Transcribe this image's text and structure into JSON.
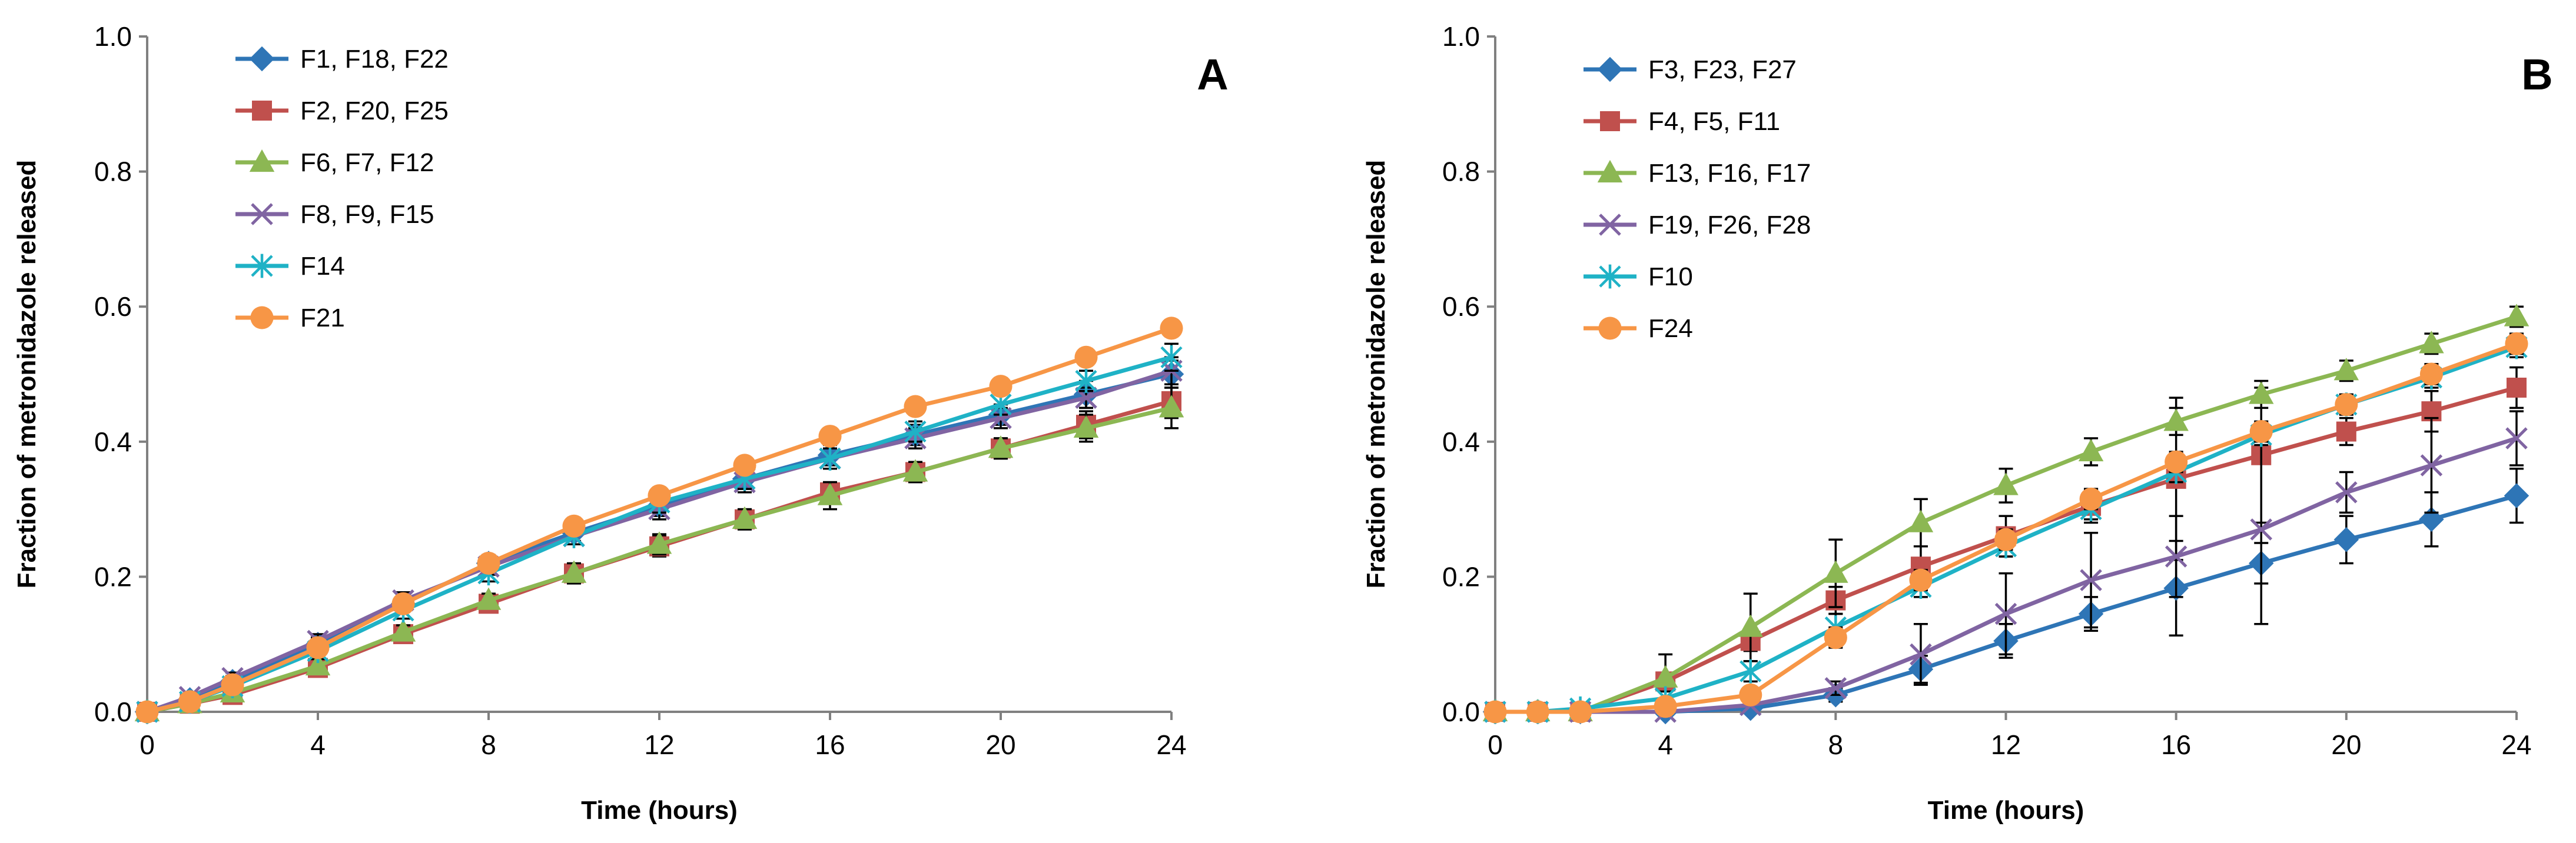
{
  "chart_data": [
    {
      "type": "line",
      "panel_label": "A",
      "xlabel": "Time (hours)",
      "ylabel": "Fraction of metronidazole released",
      "xlim": [
        0,
        24
      ],
      "ylim": [
        0,
        1.0
      ],
      "xticks": [
        "0",
        "4",
        "8",
        "12",
        "16",
        "20",
        "24"
      ],
      "yticks": [
        "0.0",
        "0.2",
        "0.4",
        "0.6",
        "0.8",
        "1.0"
      ],
      "legend_position": "top-left",
      "x": [
        0,
        1,
        2,
        4,
        6,
        8,
        10,
        12,
        14,
        16,
        18,
        20,
        22,
        24
      ],
      "series": [
        {
          "name": "F1, F18, F22",
          "color": "#2e75b6",
          "marker": "diamond",
          "values": [
            0,
            0.018,
            0.045,
            0.1,
            0.16,
            0.22,
            0.265,
            0.305,
            0.345,
            0.38,
            0.41,
            0.44,
            0.47,
            0.5
          ],
          "errors": [
            0,
            0.005,
            0.008,
            0.01,
            0.012,
            0.012,
            0.012,
            0.015,
            0.015,
            0.015,
            0.015,
            0.015,
            0.02,
            0.02
          ]
        },
        {
          "name": "F2, F20, F25",
          "color": "#c0504d",
          "marker": "square",
          "values": [
            0,
            0.012,
            0.025,
            0.065,
            0.115,
            0.16,
            0.205,
            0.245,
            0.285,
            0.325,
            0.355,
            0.39,
            0.425,
            0.46
          ],
          "errors": [
            0,
            0.004,
            0.006,
            0.01,
            0.01,
            0.01,
            0.012,
            0.015,
            0.015,
            0.015,
            0.015,
            0.015,
            0.02,
            0.025
          ]
        },
        {
          "name": "F6, F7, F12",
          "color": "#8cb753",
          "marker": "triangle",
          "values": [
            0,
            0.012,
            0.028,
            0.068,
            0.118,
            0.165,
            0.205,
            0.248,
            0.285,
            0.32,
            0.355,
            0.39,
            0.42,
            0.45
          ],
          "errors": [
            0,
            0.004,
            0.006,
            0.01,
            0.01,
            0.01,
            0.015,
            0.015,
            0.015,
            0.02,
            0.015,
            0.015,
            0.02,
            0.03
          ]
        },
        {
          "name": "F8, F9, F15",
          "color": "#8064a2",
          "marker": "x",
          "values": [
            0,
            0.022,
            0.05,
            0.105,
            0.165,
            0.215,
            0.26,
            0.3,
            0.34,
            0.375,
            0.405,
            0.435,
            0.465,
            0.505
          ],
          "errors": [
            0,
            0.005,
            0.008,
            0.01,
            0.012,
            0.012,
            0.012,
            0.015,
            0.015,
            0.015,
            0.015,
            0.015,
            0.015,
            0.02
          ]
        },
        {
          "name": "F14",
          "color": "#1fb2c6",
          "marker": "star",
          "values": [
            0,
            0.015,
            0.038,
            0.09,
            0.15,
            0.205,
            0.26,
            0.31,
            0.345,
            0.375,
            0.415,
            0.455,
            0.49,
            0.525
          ],
          "errors": [
            0,
            0.005,
            0.008,
            0.01,
            0.012,
            0.012,
            0.012,
            0.015,
            0.015,
            0.015,
            0.015,
            0.015,
            0.015,
            0.02
          ]
        },
        {
          "name": "F21",
          "color": "#f79646",
          "marker": "circle",
          "values": [
            0,
            0.015,
            0.04,
            0.095,
            0.16,
            0.22,
            0.275,
            0.32,
            0.365,
            0.408,
            0.452,
            0.482,
            0.525,
            0.568
          ],
          "errors": [
            0,
            0.005,
            0.008,
            0.01,
            0.012,
            0.012,
            0.012,
            0.012,
            0.012,
            0.012,
            0.012,
            0.012,
            0.012,
            0.012
          ]
        }
      ]
    },
    {
      "type": "line",
      "panel_label": "B",
      "xlabel": "Time (hours)",
      "ylabel": "Fraction of metronidazole released",
      "xlim": [
        0,
        24
      ],
      "ylim": [
        0,
        1.0
      ],
      "xticks": [
        "0",
        "4",
        "8",
        "12",
        "16",
        "20",
        "24"
      ],
      "yticks": [
        "0.0",
        "0.2",
        "0.4",
        "0.6",
        "0.8",
        "1.0"
      ],
      "legend_position": "top-left",
      "x": [
        0,
        1,
        2,
        4,
        6,
        8,
        10,
        12,
        14,
        16,
        18,
        20,
        22,
        24
      ],
      "series": [
        {
          "name": "F3, F23, F27",
          "color": "#2e75b6",
          "marker": "diamond",
          "values": [
            0,
            0,
            0,
            0,
            0.005,
            0.025,
            0.063,
            0.105,
            0.145,
            0.183,
            0.22,
            0.255,
            0.285,
            0.32
          ],
          "errors": [
            0,
            0,
            0,
            0.003,
            0.005,
            0.01,
            0.02,
            0.025,
            0.025,
            0.07,
            0.03,
            0.035,
            0.04,
            0.04
          ]
        },
        {
          "name": "F4, F5, F11",
          "color": "#c0504d",
          "marker": "square",
          "values": [
            0,
            0,
            0,
            0.045,
            0.105,
            0.165,
            0.215,
            0.26,
            0.305,
            0.345,
            0.38,
            0.415,
            0.445,
            0.48
          ],
          "errors": [
            0,
            0,
            0,
            0.01,
            0.015,
            0.02,
            0.03,
            0.03,
            0.025,
            0.12,
            0.1,
            0.02,
            0.03,
            0.03
          ]
        },
        {
          "name": "F13, F16, F17",
          "color": "#8cb753",
          "marker": "triangle",
          "values": [
            0,
            0,
            0,
            0.05,
            0.125,
            0.205,
            0.28,
            0.335,
            0.385,
            0.43,
            0.47,
            0.505,
            0.545,
            0.585
          ],
          "errors": [
            0,
            0,
            0,
            0.035,
            0.05,
            0.05,
            0.035,
            0.025,
            0.02,
            0.02,
            0.02,
            0.015,
            0.015,
            0.015
          ]
        },
        {
          "name": "F19, F26, F28",
          "color": "#8064a2",
          "marker": "x",
          "values": [
            0,
            0,
            0,
            0,
            0.01,
            0.035,
            0.085,
            0.145,
            0.195,
            0.23,
            0.27,
            0.325,
            0.365,
            0.405
          ],
          "errors": [
            0,
            0,
            0,
            0.003,
            0.005,
            0.01,
            0.045,
            0.06,
            0.07,
            0.06,
            0.14,
            0.03,
            0.07,
            0.04
          ]
        },
        {
          "name": "F10",
          "color": "#1fb2c6",
          "marker": "star",
          "values": [
            0,
            0,
            0.005,
            0.02,
            0.06,
            0.125,
            0.185,
            0.245,
            0.3,
            0.355,
            0.41,
            0.455,
            0.495,
            0.54
          ],
          "errors": [
            0,
            0,
            0.003,
            0.01,
            0.015,
            0.02,
            0.015,
            0.015,
            0.015,
            0.015,
            0.015,
            0.015,
            0.015,
            0.015
          ]
        },
        {
          "name": "F24",
          "color": "#f79646",
          "marker": "circle",
          "values": [
            0,
            0,
            0,
            0.008,
            0.025,
            0.11,
            0.195,
            0.255,
            0.315,
            0.37,
            0.415,
            0.455,
            0.5,
            0.545
          ],
          "errors": [
            0,
            0,
            0,
            0.005,
            0.01,
            0.015,
            0.015,
            0.015,
            0.015,
            0.015,
            0.015,
            0.015,
            0.015,
            0.015
          ]
        }
      ]
    }
  ]
}
